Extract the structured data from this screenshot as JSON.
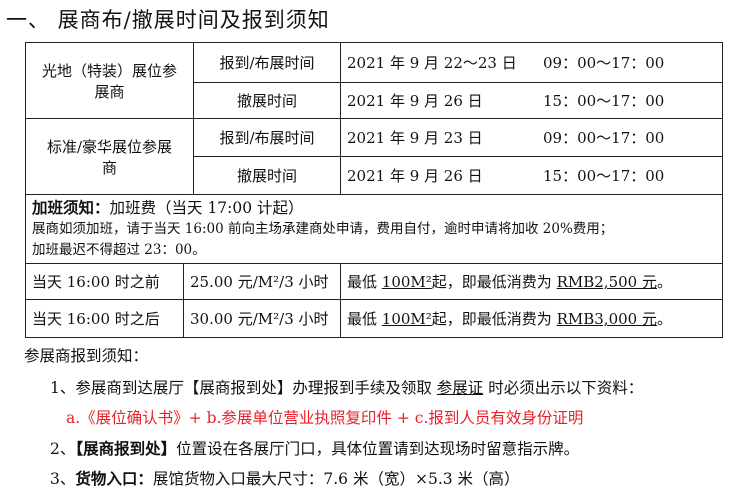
{
  "title": "一、  展商布/撤展时间及报到须知",
  "schedule": [
    {
      "group": "光地（特装）展位参展商",
      "rows": [
        {
          "item": "报到/布展时间",
          "date": "2021 年 9 月 22～23 日",
          "time": "09：00～17：00"
        },
        {
          "item": "撤展时间",
          "date": "2021 年 9 月 26 日",
          "time": "15：00～17：00"
        }
      ]
    },
    {
      "group": "标准/豪华展位参展商",
      "rows": [
        {
          "item": "报到/布展时间",
          "date": "2021 年 9 月 23 日",
          "time": "09：00～17：00"
        },
        {
          "item": "撤展时间",
          "date": "2021 年 9 月 26 日",
          "time": "15：00～17：00"
        }
      ]
    }
  ],
  "overtime": {
    "label": "加班须知：",
    "fee": "加班费（当天 17:00 计起）",
    "line1": "展商如须加班，请于当天 16:00 前向主场承建商处申请，费用自付，逾时申请将加收 20%费用；",
    "line2": "加班最迟不得超过 23：00。",
    "rows": [
      {
        "period": "当天 16:00 时之前",
        "rate": "25.00 元/M²/3 小时",
        "min_pre": "最低 ",
        "min_area": "100M²",
        "min_mid": "起，即最低消费为 ",
        "min_amount": "RMB2,500 元",
        "min_end": "。"
      },
      {
        "period": "当天 16:00 时之后",
        "rate": "30.00 元/M²/3 小时",
        "min_pre": "最低 ",
        "min_area": "100M²",
        "min_mid": "起，即最低消费为 ",
        "min_amount": "RMB3,000 元",
        "min_end": "。"
      }
    ]
  },
  "notice": {
    "heading": "参展商报到须知：",
    "item1_pre": "1、参展商到达展厅【展商报到处】办理报到手续及领取 ",
    "item1_u": "参展证",
    "item1_post": " 时必须出示以下资料：",
    "item1_docs": "a.《展位确认书》+ b.参展单位营业执照复印件 + c.报到人员有效身份证明",
    "item2_num": "2、",
    "item2_bold": "【展商报到处】",
    "item2_text": "位置设在各展厅门口，具体位置请到达现场时留意指示牌。",
    "item3_num": "3、",
    "item3_bold": "货物入口：",
    "item3_text": "展馆货物入口最大尺寸：7.6 米（宽）×5.3 米（高）"
  },
  "colors": {
    "highlight": "#e8202a"
  }
}
